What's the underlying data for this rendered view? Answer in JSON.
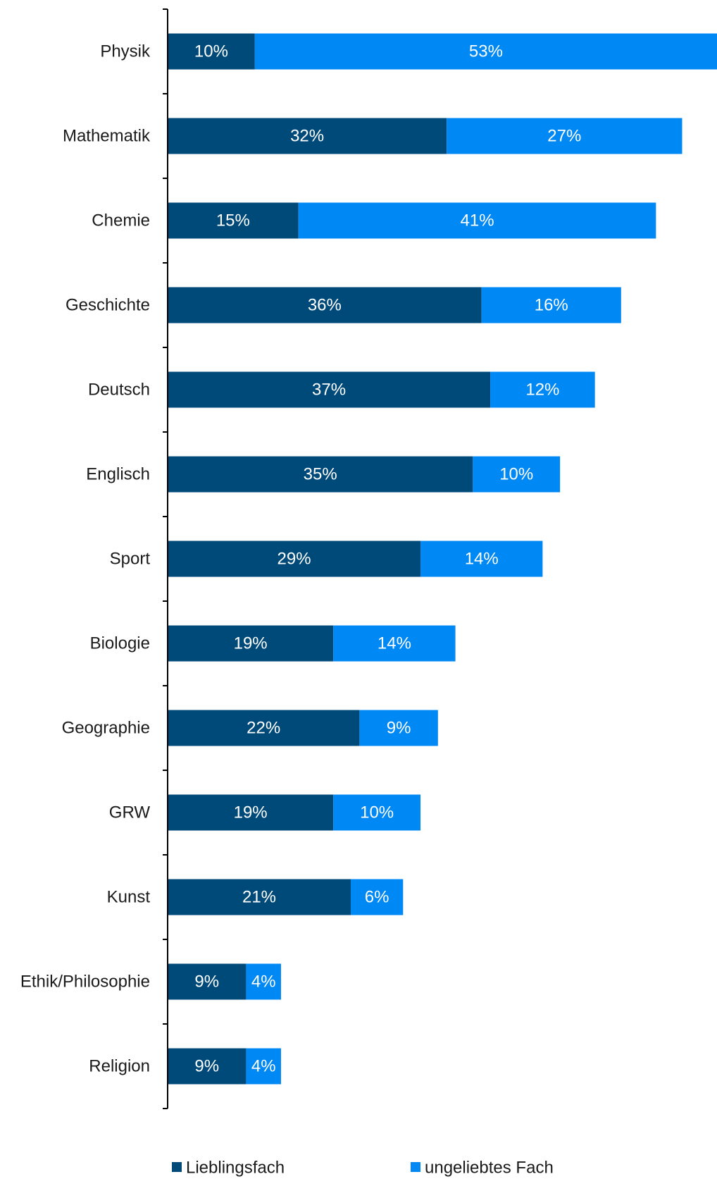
{
  "chart_data": {
    "type": "bar",
    "orientation": "horizontal",
    "stacked": true,
    "categories": [
      "Physik",
      "Mathematik",
      "Chemie",
      "Geschichte",
      "Deutsch",
      "Englisch",
      "Sport",
      "Biologie",
      "Geographie",
      "GRW",
      "Kunst",
      "Ethik/Philosophie",
      "Religion"
    ],
    "series": [
      {
        "name": "Lieblingsfach",
        "color": "#004a7a",
        "values": [
          10,
          32,
          15,
          36,
          37,
          35,
          29,
          19,
          22,
          19,
          21,
          9,
          9
        ],
        "labels": [
          "10%",
          "32%",
          "15%",
          "36%",
          "37%",
          "35%",
          "29%",
          "19%",
          "22%",
          "19%",
          "21%",
          "9%",
          "9%"
        ]
      },
      {
        "name": "ungeliebtes Fach",
        "color": "#0088f5",
        "values": [
          53,
          27,
          41,
          16,
          12,
          10,
          14,
          14,
          9,
          10,
          6,
          4,
          4
        ],
        "labels": [
          "53%",
          "27%",
          "41%",
          "16%",
          "12%",
          "10%",
          "14%",
          "14%",
          "9%",
          "10%",
          "6%",
          "4%",
          "4%"
        ]
      }
    ],
    "title": "",
    "xlabel": "",
    "ylabel": "",
    "xlim": [
      0,
      63
    ],
    "grid": false,
    "legend_position": "bottom",
    "axis_color": "#000000",
    "label_color": "#1a1a1a",
    "value_label_color": "#ffffff"
  }
}
